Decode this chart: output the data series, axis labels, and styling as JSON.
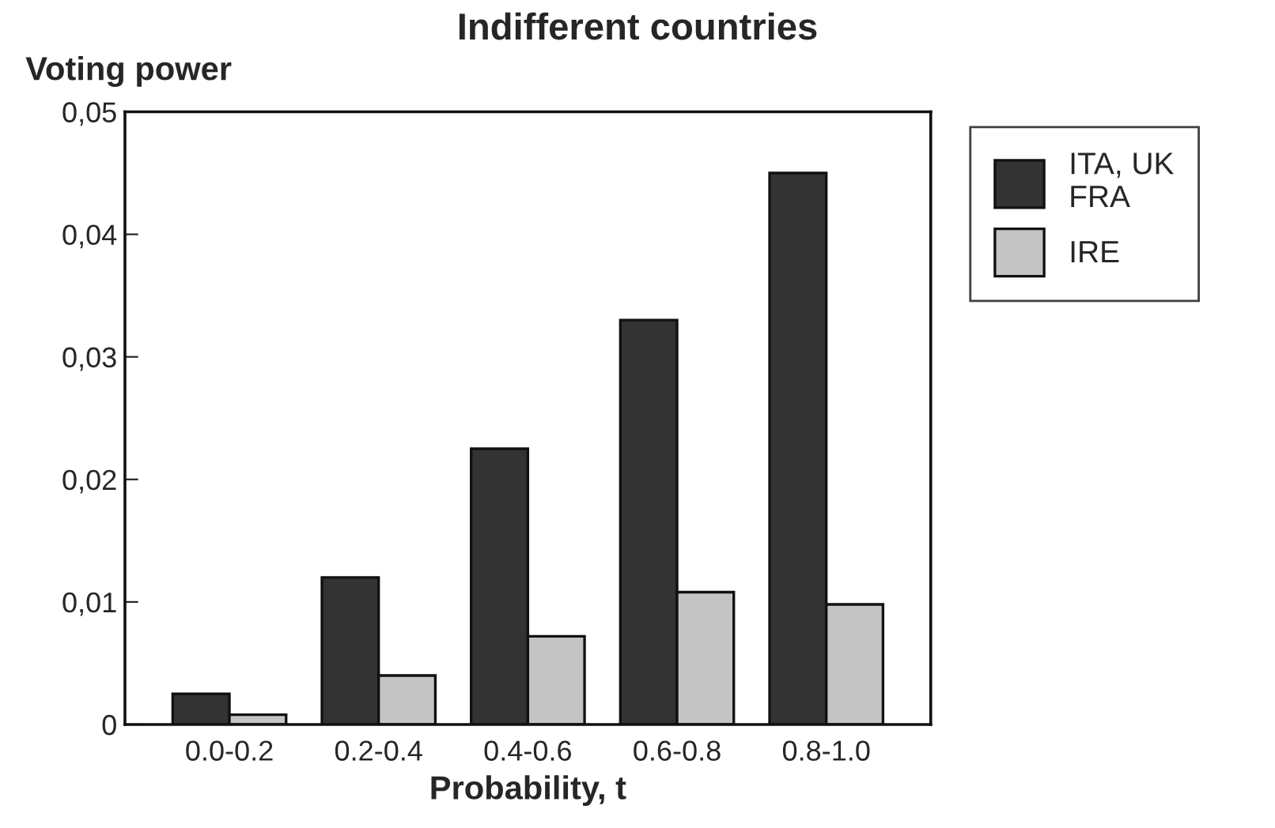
{
  "chart_data": {
    "type": "bar",
    "title": "Indifferent countries",
    "ylabel": "Voting power",
    "xlabel": "Probability, t",
    "categories": [
      "0.0-0.2",
      "0.2-0.4",
      "0.4-0.6",
      "0.6-0.8",
      "0.8-1.0"
    ],
    "series": [
      {
        "name": "ITA, UK\nFRA",
        "color": "#333333",
        "values": [
          0.0025,
          0.012,
          0.0225,
          0.033,
          0.045
        ]
      },
      {
        "name": "IRE",
        "color": "#c4c4c4",
        "values": [
          0.0008,
          0.004,
          0.0072,
          0.0108,
          0.0098
        ]
      }
    ],
    "ylim": [
      0,
      0.05
    ],
    "yticks": [
      {
        "value": 0,
        "label": "0"
      },
      {
        "value": 0.01,
        "label": "0,01"
      },
      {
        "value": 0.02,
        "label": "0,02"
      },
      {
        "value": 0.03,
        "label": "0,03"
      },
      {
        "value": 0.04,
        "label": "0,04"
      },
      {
        "value": 0.05,
        "label": "0,05"
      }
    ],
    "grid": false,
    "legend": "top right"
  }
}
